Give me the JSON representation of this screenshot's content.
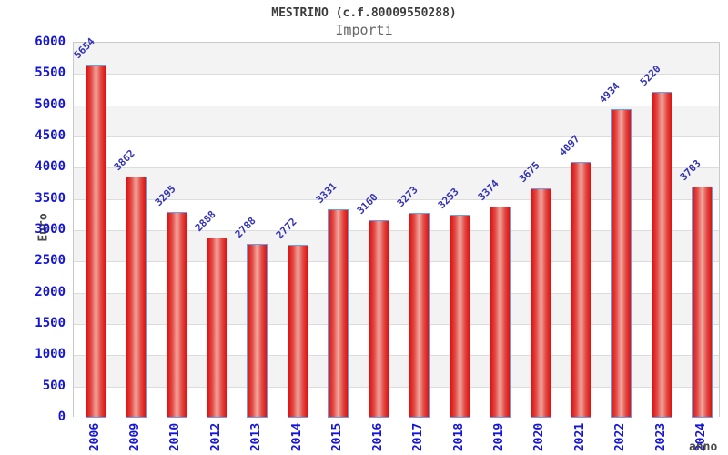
{
  "chart_data": {
    "type": "bar",
    "title": "MESTRINO (c.f.80009550288)",
    "subtitle": "Importi",
    "xlabel": "anno",
    "ylabel": "Euro",
    "categories": [
      "2006",
      "2009",
      "2010",
      "2012",
      "2013",
      "2014",
      "2015",
      "2016",
      "2017",
      "2018",
      "2019",
      "2020",
      "2021",
      "2022",
      "2023",
      "2024"
    ],
    "values": [
      5654,
      3862,
      3295,
      2888,
      2788,
      2772,
      3331,
      3160,
      3273,
      3253,
      3374,
      3675,
      4097,
      4934,
      5220,
      3703
    ],
    "ylim": [
      0,
      6000
    ],
    "yticks": [
      0,
      500,
      1000,
      1500,
      2000,
      2500,
      3000,
      3500,
      4000,
      4500,
      5000,
      5500,
      6000
    ],
    "grid": true,
    "legend_position": "none",
    "colors": {
      "bar_edge": "#dd1111",
      "bar_mid": "#e34a44",
      "bar_center": "#f0a8a0",
      "bar_border": "#6b9fe4",
      "tick_label": "#1515d6",
      "value_label": "#3333b3",
      "axis_title": "#4a4a4a",
      "title": "#3c3c3c",
      "subtitle": "#666666",
      "band_gray": "#f3f3f3",
      "band_white": "#ffffff",
      "grid_line": "#dcdcdc",
      "plot_border": "#c9c9c9"
    }
  }
}
